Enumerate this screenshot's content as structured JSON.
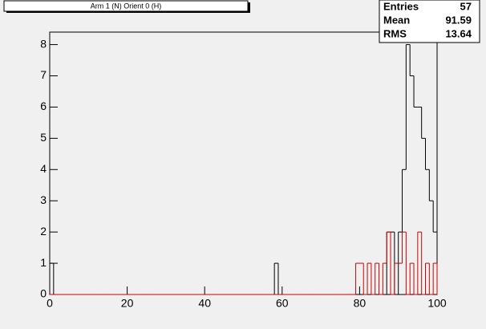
{
  "chart_data": {
    "type": "histogram",
    "title": "Arm 1 (N) Orient 0 (H)",
    "bins": [
      0,
      1,
      2,
      3,
      4,
      5,
      6,
      7,
      8,
      9,
      10,
      11,
      12,
      13,
      14,
      15,
      16,
      17,
      18,
      19,
      20,
      21,
      22,
      23,
      24,
      25,
      26,
      27,
      28,
      29,
      30,
      31,
      32,
      33,
      34,
      35,
      36,
      37,
      38,
      39,
      40,
      41,
      42,
      43,
      44,
      45,
      46,
      47,
      48,
      49,
      50,
      51,
      52,
      53,
      54,
      55,
      56,
      57,
      58,
      59,
      60,
      61,
      62,
      63,
      64,
      65,
      66,
      67,
      68,
      69,
      70,
      71,
      72,
      73,
      74,
      75,
      76,
      77,
      78,
      79,
      80,
      81,
      82,
      83,
      84,
      85,
      86,
      87,
      88,
      89,
      90,
      91,
      92,
      93,
      94,
      95,
      96,
      97,
      98,
      99,
      100
    ],
    "series": [
      {
        "color": "#000000",
        "values": [
          1,
          0,
          0,
          0,
          0,
          0,
          0,
          0,
          0,
          0,
          0,
          0,
          0,
          0,
          0,
          0,
          0,
          0,
          0,
          0,
          0,
          0,
          0,
          0,
          0,
          0,
          0,
          0,
          0,
          0,
          0,
          0,
          0,
          0,
          0,
          0,
          0,
          0,
          0,
          0,
          0,
          0,
          0,
          0,
          0,
          0,
          0,
          0,
          0,
          0,
          0,
          0,
          0,
          0,
          0,
          0,
          0,
          0,
          1,
          0,
          0,
          0,
          0,
          0,
          0,
          0,
          0,
          0,
          0,
          0,
          0,
          0,
          0,
          0,
          0,
          0,
          0,
          0,
          0,
          0,
          0,
          0,
          0,
          0,
          0,
          0,
          0,
          2,
          2,
          0,
          2,
          4,
          8,
          7,
          6,
          6,
          5,
          4,
          3,
          2
        ]
      },
      {
        "color": "#d00000",
        "values": [
          0,
          0,
          0,
          0,
          0,
          0,
          0,
          0,
          0,
          0,
          0,
          0,
          0,
          0,
          0,
          0,
          0,
          0,
          0,
          0,
          0,
          0,
          0,
          0,
          0,
          0,
          0,
          0,
          0,
          0,
          0,
          0,
          0,
          0,
          0,
          0,
          0,
          0,
          0,
          0,
          0,
          0,
          0,
          0,
          0,
          0,
          0,
          0,
          0,
          0,
          0,
          0,
          0,
          0,
          0,
          0,
          0,
          0,
          0,
          0,
          0,
          0,
          0,
          0,
          0,
          0,
          0,
          0,
          0,
          0,
          0,
          0,
          0,
          0,
          0,
          0,
          0,
          0,
          0,
          1,
          1,
          0,
          1,
          0,
          1,
          0,
          1,
          2,
          0,
          1,
          1,
          2,
          0,
          1,
          0,
          2,
          0,
          1,
          0,
          1
        ]
      }
    ],
    "xlim": [
      0,
      100
    ],
    "xticks": [
      0,
      20,
      40,
      60,
      80,
      100
    ],
    "ylim": [
      0,
      8.4
    ],
    "yticks": [
      0,
      1,
      2,
      3,
      4,
      5,
      6,
      7,
      8
    ],
    "stats": [
      {
        "label": "Entries",
        "value": 57
      },
      {
        "label": "Mean",
        "value": 91.59
      },
      {
        "label": "RMS",
        "value": 13.64
      }
    ]
  }
}
